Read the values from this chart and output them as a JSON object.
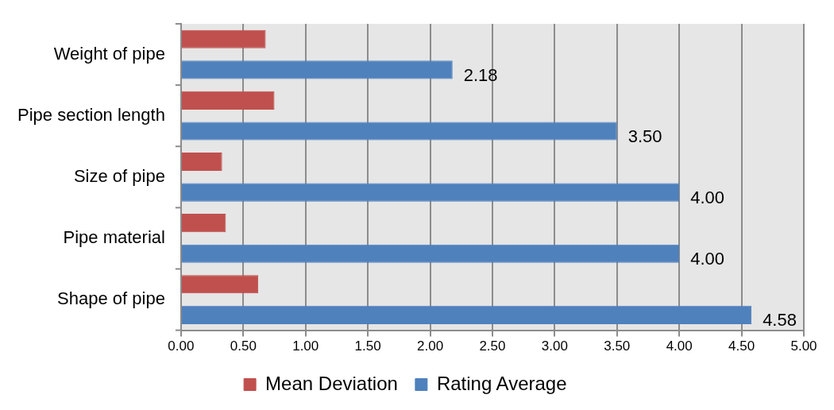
{
  "chart_data": {
    "type": "bar",
    "orientation": "horizontal",
    "categories": [
      "Weight of pipe",
      "Pipe section length",
      "Size of pipe",
      "Pipe material",
      "Shape of pipe"
    ],
    "series": [
      {
        "name": "Mean Deviation",
        "color": "#c0504d",
        "values": [
          0.68,
          0.75,
          0.33,
          0.36,
          0.62
        ]
      },
      {
        "name": "Rating Average",
        "color": "#4f81bd",
        "values": [
          2.18,
          3.5,
          4.0,
          4.0,
          4.58
        ],
        "value_labels": [
          "2.18",
          "3.50",
          "4.00",
          "4.00",
          "4.58"
        ]
      }
    ],
    "xlim": [
      0,
      5
    ],
    "xticks": [
      {
        "value": 0,
        "label": "0.00"
      },
      {
        "value": 0.5,
        "label": "0.50"
      },
      {
        "value": 1,
        "label": "1.00"
      },
      {
        "value": 1.5,
        "label": "1.50"
      },
      {
        "value": 2,
        "label": "2.00"
      },
      {
        "value": 2.5,
        "label": "2.50"
      },
      {
        "value": 3,
        "label": "3.00"
      },
      {
        "value": 3.5,
        "label": "3.50"
      },
      {
        "value": 4,
        "label": "4.00"
      },
      {
        "value": 4.5,
        "label": "4.50"
      },
      {
        "value": 5,
        "label": "5.00"
      }
    ],
    "grid": "x",
    "legend": "bottom"
  }
}
